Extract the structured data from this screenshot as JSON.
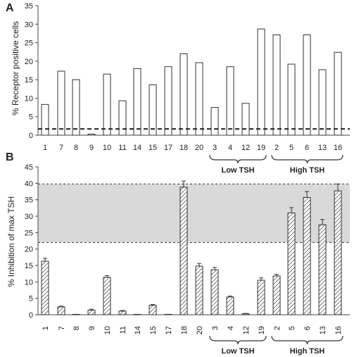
{
  "chart_data": [
    {
      "type": "bar",
      "panel": "A",
      "ylabel": "% Receptor positive cells",
      "ylim": [
        0,
        35
      ],
      "yticks": [
        0,
        5,
        10,
        15,
        20,
        25,
        30,
        35
      ],
      "categories": [
        "1",
        "7",
        "8",
        "9",
        "10",
        "11",
        "14",
        "15",
        "17",
        "18",
        "20",
        "3",
        "4",
        "12",
        "19",
        "2",
        "5",
        "6",
        "13",
        "16"
      ],
      "values": [
        8.3,
        17.3,
        15.0,
        0.3,
        16.5,
        9.3,
        18.0,
        13.6,
        18.5,
        22.0,
        19.6,
        7.5,
        18.5,
        8.6,
        28.7,
        27.1,
        19.2,
        27.1,
        17.7,
        22.4
      ],
      "threshold_line": 1.7,
      "groups": [
        {
          "label": "Low TSH",
          "from": "3",
          "to": "19"
        },
        {
          "label": "High TSH",
          "from": "2",
          "to": "16"
        }
      ]
    },
    {
      "type": "bar",
      "panel": "B",
      "ylabel": "% Inhibition  of max TSH",
      "ylim": [
        0,
        45
      ],
      "yticks": [
        0,
        5,
        10,
        15,
        20,
        25,
        30,
        35,
        40,
        45
      ],
      "categories": [
        "1",
        "7",
        "8",
        "9",
        "10",
        "11",
        "14",
        "15",
        "17",
        "18",
        "20",
        "3",
        "4",
        "12",
        "19",
        "2",
        "5",
        "6",
        "13",
        "16"
      ],
      "values": [
        16.3,
        2.4,
        0,
        1.4,
        11.4,
        1.1,
        0,
        2.9,
        0,
        38.8,
        14.8,
        13.7,
        5.4,
        0.3,
        10.5,
        11.8,
        31.0,
        35.7,
        27.4,
        37.7
      ],
      "errors": [
        0.9,
        0.2,
        0,
        0.3,
        0.5,
        0.2,
        0,
        0.2,
        0,
        1.9,
        0.8,
        0.7,
        0.3,
        0.1,
        0.7,
        0.5,
        1.6,
        1.8,
        1.6,
        2.1
      ],
      "shaded_band": [
        22,
        39.8
      ],
      "groups": [
        {
          "label": "Low TSH",
          "from": "3",
          "to": "19"
        },
        {
          "label": "High TSH",
          "from": "2",
          "to": "16"
        }
      ]
    }
  ]
}
